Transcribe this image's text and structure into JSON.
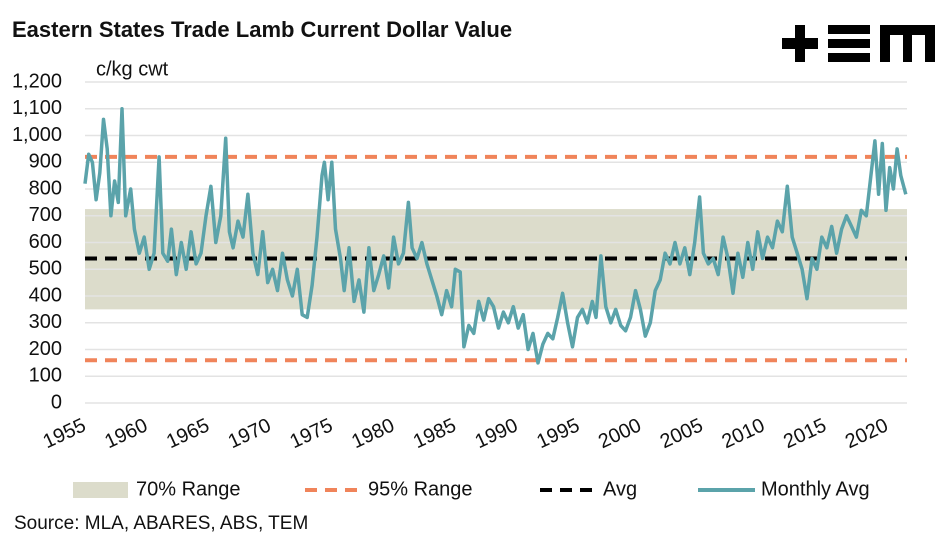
{
  "chart_data": {
    "type": "line",
    "title": "Eastern States Trade Lamb Current Dollar Value",
    "y_label": "c/kg cwt",
    "source": "Source: MLA, ABARES, ABS, TEM",
    "xlim": [
      1955,
      2021.6
    ],
    "xticks": [
      1955,
      1960,
      1965,
      1970,
      1975,
      1980,
      1985,
      1990,
      1995,
      2000,
      2005,
      2010,
      2015,
      2020
    ],
    "ylim": [
      0,
      1200
    ],
    "yticks": [
      0,
      100,
      200,
      300,
      400,
      500,
      600,
      700,
      800,
      900,
      {
        "value": 1000,
        "label": "1,000"
      },
      {
        "value": 1100,
        "label": "1,100"
      },
      {
        "value": 1200,
        "label": "1,200"
      }
    ],
    "grid": true,
    "reference": [
      {
        "name": "70% Range",
        "kind": "band",
        "color": "#dcdccb",
        "values": [
          350,
          725
        ]
      },
      {
        "name": "95% Range",
        "kind": "dashed",
        "color": "#f0845a",
        "values": [
          160,
          920
        ]
      },
      {
        "name": "Avg",
        "kind": "dashed",
        "color": "#000000",
        "values": [
          540
        ]
      }
    ],
    "series": [
      {
        "name": "Monthly Avg",
        "color": "#5ba3aa",
        "x": [
          1955.0,
          1955.3,
          1955.6,
          1955.9,
          1956.2,
          1956.5,
          1956.8,
          1957.1,
          1957.4,
          1957.7,
          1958.0,
          1958.3,
          1958.7,
          1959.0,
          1959.4,
          1959.8,
          1960.2,
          1960.6,
          1961.0,
          1961.3,
          1961.7,
          1962.0,
          1962.4,
          1962.8,
          1963.2,
          1963.6,
          1964.0,
          1964.4,
          1964.8,
          1965.2,
          1965.6,
          1966.0,
          1966.4,
          1966.7,
          1967.0,
          1967.4,
          1967.8,
          1968.2,
          1968.6,
          1969.0,
          1969.4,
          1969.8,
          1970.2,
          1970.6,
          1971.0,
          1971.4,
          1971.8,
          1972.2,
          1972.6,
          1973.0,
          1973.4,
          1973.8,
          1974.2,
          1974.4,
          1974.7,
          1975.0,
          1975.3,
          1975.7,
          1976.0,
          1976.4,
          1976.8,
          1977.2,
          1977.6,
          1978.0,
          1978.4,
          1978.8,
          1979.2,
          1979.6,
          1980.0,
          1980.4,
          1980.8,
          1981.2,
          1981.5,
          1981.9,
          1982.3,
          1982.7,
          1983.1,
          1983.5,
          1983.9,
          1984.3,
          1984.7,
          1985.0,
          1985.4,
          1985.7,
          1986.1,
          1986.5,
          1986.9,
          1987.3,
          1987.7,
          1988.1,
          1988.5,
          1988.9,
          1989.3,
          1989.7,
          1990.1,
          1990.5,
          1990.9,
          1991.3,
          1991.7,
          1992.1,
          1992.5,
          1992.9,
          1993.3,
          1993.7,
          1994.1,
          1994.5,
          1994.9,
          1995.3,
          1995.7,
          1996.1,
          1996.4,
          1996.8,
          1997.2,
          1997.6,
          1998.0,
          1998.4,
          1998.8,
          1999.2,
          1999.6,
          2000.0,
          2000.4,
          2000.8,
          2001.2,
          2001.6,
          2002.0,
          2002.4,
          2002.8,
          2003.2,
          2003.6,
          2004.0,
          2004.4,
          2004.8,
          2005.1,
          2005.5,
          2005.9,
          2006.3,
          2006.7,
          2007.1,
          2007.5,
          2007.9,
          2008.3,
          2008.7,
          2009.1,
          2009.5,
          2009.9,
          2010.3,
          2010.7,
          2011.1,
          2011.5,
          2011.9,
          2012.3,
          2012.7,
          2013.1,
          2013.5,
          2013.9,
          2014.3,
          2014.7,
          2015.1,
          2015.5,
          2015.9,
          2016.3,
          2016.7,
          2017.1,
          2017.5,
          2017.9,
          2018.3,
          2018.7,
          2019.0,
          2019.3,
          2019.6,
          2019.9,
          2020.2,
          2020.5,
          2020.8,
          2021.1,
          2021.5
        ],
        "values": [
          820,
          930,
          900,
          760,
          860,
          1060,
          950,
          700,
          830,
          750,
          1100,
          700,
          800,
          650,
          560,
          620,
          500,
          560,
          920,
          560,
          530,
          650,
          480,
          600,
          500,
          640,
          520,
          560,
          700,
          810,
          600,
          700,
          990,
          640,
          580,
          680,
          620,
          780,
          560,
          480,
          640,
          450,
          500,
          420,
          560,
          460,
          400,
          500,
          330,
          320,
          440,
          620,
          850,
          900,
          760,
          900,
          650,
          540,
          420,
          580,
          380,
          460,
          340,
          580,
          420,
          480,
          550,
          430,
          620,
          520,
          560,
          750,
          580,
          540,
          600,
          520,
          460,
          400,
          330,
          420,
          360,
          500,
          490,
          210,
          290,
          260,
          380,
          310,
          390,
          360,
          280,
          340,
          300,
          360,
          280,
          330,
          200,
          260,
          150,
          220,
          260,
          240,
          320,
          410,
          300,
          210,
          320,
          350,
          300,
          380,
          320,
          550,
          360,
          300,
          350,
          290,
          270,
          320,
          420,
          350,
          250,
          300,
          420,
          460,
          560,
          520,
          600,
          520,
          580,
          480,
          600,
          770,
          560,
          520,
          540,
          480,
          620,
          540,
          410,
          560,
          470,
          600,
          500,
          640,
          540,
          620,
          580,
          680,
          640,
          810,
          620,
          560,
          500,
          390,
          540,
          500,
          620,
          580,
          660,
          560,
          650,
          700,
          660,
          620,
          720,
          700,
          860,
          980,
          780,
          970,
          720,
          880,
          800,
          950,
          850,
          780
        ]
      }
    ]
  }
}
